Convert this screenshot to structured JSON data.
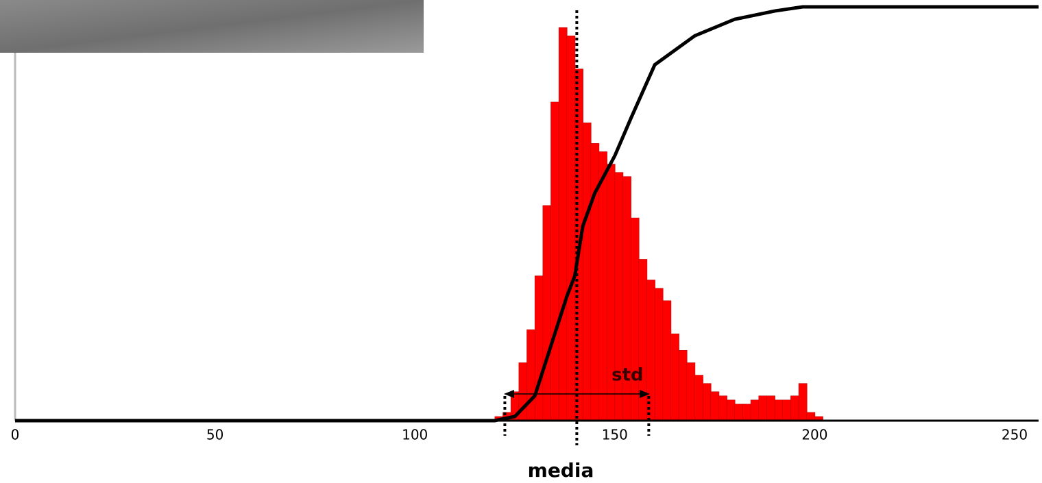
{
  "chart_data": {
    "type": "histogram",
    "xlabel": "media",
    "annotation": "std",
    "bins": [
      120,
      122,
      124,
      126,
      128,
      130,
      132,
      134,
      136,
      138,
      140,
      142,
      144,
      146,
      148,
      150,
      152,
      154,
      156,
      158,
      160,
      162,
      164,
      166,
      168,
      170,
      172,
      174,
      176,
      178,
      180,
      182,
      184,
      186,
      188,
      190,
      192,
      194,
      196,
      198,
      200,
      202
    ],
    "values": [
      1,
      2,
      7,
      14,
      22,
      35,
      52,
      77,
      95,
      93,
      85,
      72,
      67,
      65,
      62,
      60,
      59,
      49,
      39,
      34,
      32,
      29,
      21,
      17,
      14,
      11,
      9,
      7,
      6,
      5,
      4,
      4,
      5,
      6,
      6,
      5,
      5,
      6,
      9,
      2,
      1
    ],
    "color": "#ff0000",
    "cdf": {
      "x": [
        0,
        120,
        125,
        130,
        135,
        138,
        140,
        142,
        145,
        150,
        154,
        160,
        170,
        180,
        190,
        197,
        256
      ],
      "values": [
        0,
        0,
        1,
        6,
        21,
        30,
        35,
        47,
        55,
        64,
        73,
        86,
        93,
        97,
        99,
        100,
        100
      ],
      "color": "#000000"
    },
    "mean": 140.5,
    "std_markers": [
      122.5,
      158.5
    ],
    "xlim": [
      0,
      256
    ],
    "xticks": [
      0,
      50,
      100,
      150,
      200,
      250
    ],
    "ylim": [
      0,
      100
    ]
  }
}
